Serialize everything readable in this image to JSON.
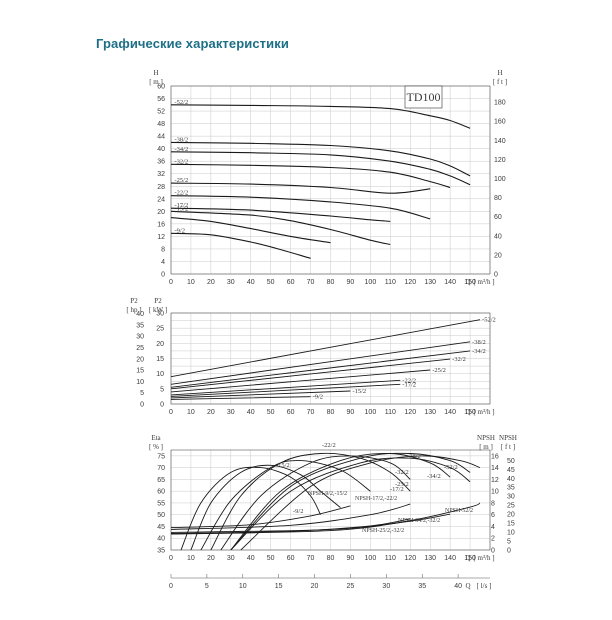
{
  "page": {
    "title": "Графические характеристики"
  },
  "chart_data": [
    {
      "type": "line",
      "panel": "head",
      "badge": "TD100",
      "ylabel_left": "H",
      "yunit_left": "[ m ]",
      "ylabel_right": "H",
      "yunit_right": "[ f t ]",
      "xlabel": "Q",
      "xunit": "[ m³/h ]",
      "xlim": [
        0,
        160
      ],
      "ylim": [
        0,
        60
      ],
      "xticks": [
        0,
        10,
        20,
        30,
        40,
        50,
        60,
        70,
        80,
        90,
        100,
        110,
        120,
        130,
        140,
        150
      ],
      "yticks": [
        0,
        4,
        8,
        12,
        16,
        20,
        24,
        28,
        32,
        36,
        40,
        44,
        48,
        52,
        56,
        60
      ],
      "yticks_right": [
        0,
        20,
        40,
        60,
        80,
        100,
        120,
        140,
        160,
        180
      ],
      "ft_per_m": 3.2808,
      "grid": true,
      "series": [
        {
          "name": "-52/2",
          "x": [
            0,
            40,
            80,
            110,
            130,
            140,
            150
          ],
          "y": [
            54,
            53.8,
            53.5,
            52.8,
            50.5,
            49,
            46.5
          ]
        },
        {
          "name": "-38/2",
          "x": [
            0,
            40,
            80,
            110,
            130,
            140,
            150
          ],
          "y": [
            42,
            41.7,
            41,
            39.3,
            36.7,
            34.5,
            31.3
          ]
        },
        {
          "name": "-34/2",
          "x": [
            0,
            40,
            80,
            110,
            130,
            140,
            150
          ],
          "y": [
            39,
            38.7,
            38,
            36,
            33.4,
            31.3,
            28.5
          ]
        },
        {
          "name": "-32/2",
          "x": [
            0,
            40,
            80,
            110,
            130,
            140
          ],
          "y": [
            35,
            34.7,
            34,
            32.5,
            29.5,
            27.6
          ]
        },
        {
          "name": "-25/2",
          "x": [
            0,
            40,
            80,
            110,
            130
          ],
          "y": [
            29,
            28.7,
            27.6,
            25.8,
            27.2
          ]
        },
        {
          "name": "-22/2",
          "x": [
            0,
            40,
            80,
            110,
            130
          ],
          "y": [
            25,
            24.5,
            23,
            21,
            17.6
          ]
        },
        {
          "name": "-17/2",
          "x": [
            0,
            40,
            80,
            100,
            110
          ],
          "y": [
            21,
            20.4,
            18.5,
            17.3,
            16.8
          ]
        },
        {
          "name": "-15/2",
          "x": [
            0,
            40,
            60,
            80,
            100,
            110
          ],
          "y": [
            20,
            18.8,
            17,
            14.2,
            10.8,
            9.4
          ]
        },
        {
          "name": "-9/2",
          "x": [
            0,
            20,
            40,
            55,
            70
          ],
          "y": [
            13,
            12.5,
            10.2,
            7.8,
            5
          ]
        },
        {
          "name": "",
          "x": [
            0,
            20,
            40,
            60,
            80
          ],
          "y": [
            18,
            16.8,
            14.5,
            12,
            10
          ]
        }
      ]
    },
    {
      "type": "line",
      "panel": "power",
      "ylabel_left": "P2",
      "yunit_left": "[ hp ]",
      "ylabel_right": "P2",
      "yunit_right": "[ kW ]",
      "xlabel": "Q",
      "xunit": "[ m³/h ]",
      "xlim": [
        0,
        160
      ],
      "ylim": [
        0,
        30
      ],
      "xticks": [
        0,
        10,
        20,
        30,
        40,
        50,
        60,
        70,
        80,
        90,
        100,
        110,
        120,
        130,
        140,
        150
      ],
      "yticks_kw": [
        0,
        5,
        10,
        15,
        20,
        25,
        30
      ],
      "yticks_hp": [
        0,
        5,
        10,
        15,
        20,
        25,
        30,
        35,
        40
      ],
      "grid": true,
      "series": [
        {
          "name": "-52/2",
          "x": [
            0,
            155
          ],
          "y": [
            9,
            27.8
          ]
        },
        {
          "name": "-38/2",
          "x": [
            0,
            150
          ],
          "y": [
            6.5,
            20.5
          ]
        },
        {
          "name": "-34/2",
          "x": [
            0,
            150
          ],
          "y": [
            5.5,
            17.5
          ]
        },
        {
          "name": "-32/2",
          "x": [
            0,
            140
          ],
          "y": [
            5,
            14.8
          ]
        },
        {
          "name": "-25/2",
          "x": [
            0,
            130
          ],
          "y": [
            4,
            11.2
          ]
        },
        {
          "name": "-22/2",
          "x": [
            0,
            115
          ],
          "y": [
            3,
            7.8
          ]
        },
        {
          "name": "-17/2",
          "x": [
            0,
            115
          ],
          "y": [
            2.5,
            6.5
          ]
        },
        {
          "name": "-15/2",
          "x": [
            0,
            90
          ],
          "y": [
            2,
            4.3
          ]
        },
        {
          "name": "-9/2",
          "x": [
            0,
            70
          ],
          "y": [
            1.5,
            2.4
          ]
        }
      ]
    },
    {
      "type": "line",
      "panel": "efficiency_npsh",
      "ylabel_left": "Eta",
      "yunit_left": "[ % ]",
      "ylabel_right1": "NPSH",
      "yunit_right1": "[ m ]",
      "ylabel_right2": "NPSH",
      "yunit_right2": "[ f t ]",
      "xlabel": "Q",
      "xunit": "[ m³/h ]",
      "xlabel2": "Q",
      "xunit2": "[ l/s ]",
      "xlim": [
        0,
        160
      ],
      "ylim": [
        35,
        77.5
      ],
      "xticks": [
        0,
        10,
        20,
        30,
        40,
        50,
        60,
        70,
        80,
        90,
        100,
        110,
        120,
        130,
        140,
        150
      ],
      "yticks": [
        35,
        40,
        45,
        50,
        55,
        60,
        65,
        70,
        75
      ],
      "yticks_npsh_m": [
        0,
        2,
        4,
        6,
        8,
        10,
        12,
        14,
        16
      ],
      "yticks_npsh_ft": [
        0,
        5,
        10,
        15,
        20,
        25,
        30,
        35,
        40,
        45,
        50
      ],
      "xticks_ls": [
        0,
        5,
        10,
        15,
        20,
        25,
        30,
        35,
        40
      ],
      "grid": true,
      "eta_series": [
        {
          "name": "-9/2",
          "x": [
            5,
            15,
            30,
            45,
            60,
            70,
            75
          ],
          "y": [
            35,
            55,
            68,
            70,
            66,
            58,
            50
          ]
        },
        {
          "name": "-15/2",
          "x": [
            10,
            20,
            35,
            50,
            65,
            75,
            85
          ],
          "y": [
            35,
            55,
            68,
            71,
            67,
            60,
            53
          ]
        },
        {
          "name": "-22/2",
          "x": [
            20,
            35,
            55,
            75,
            95,
            110,
            120
          ],
          "y": [
            35,
            58,
            72,
            76,
            74,
            68,
            60
          ]
        },
        {
          "name": "-17/2",
          "x": [
            15,
            30,
            50,
            65,
            85,
            100
          ],
          "y": [
            35,
            56,
            70,
            73,
            69,
            60
          ]
        },
        {
          "name": "-25/2",
          "x": [
            25,
            45,
            70,
            90,
            110,
            120
          ],
          "y": [
            35,
            58,
            72,
            75,
            72,
            65
          ]
        },
        {
          "name": "-32/2",
          "x": [
            30,
            55,
            85,
            110,
            130,
            140
          ],
          "y": [
            35,
            60,
            73,
            76,
            72,
            66
          ]
        },
        {
          "name": "-38/2",
          "x": [
            30,
            60,
            95,
            120,
            140,
            150
          ],
          "y": [
            35,
            62,
            74,
            76,
            73,
            68
          ]
        },
        {
          "name": "-34/2",
          "x": [
            30,
            60,
            95,
            120,
            140,
            150
          ],
          "y": [
            35,
            60,
            72,
            74,
            70,
            64
          ]
        },
        {
          "name": "-52/2",
          "x": [
            35,
            70,
            100,
            125,
            145,
            155
          ],
          "y": [
            35,
            62,
            72,
            75,
            73,
            70
          ]
        }
      ],
      "npsh_labels": [
        "NPSH-9/2,-15/2",
        "NPSH-17/2,-22/2",
        "NPSH-52/2",
        "NPSH-34/2,-32/2",
        "NPSH-25/2,-32/2"
      ],
      "npsh_series": [
        {
          "name": "NPSH-9/2,-15/2",
          "x": [
            0,
            40,
            70,
            90
          ],
          "y": [
            3.8,
            4.3,
            5.8,
            7.5
          ]
        },
        {
          "name": "NPSH-17/2,-22/2",
          "x": [
            0,
            60,
            100,
            120
          ],
          "y": [
            3.5,
            4.2,
            6,
            7.8
          ]
        },
        {
          "name": "NPSH-52/2",
          "x": [
            0,
            80,
            120,
            150,
            155
          ],
          "y": [
            2.7,
            3.3,
            5,
            7.3,
            8
          ]
        },
        {
          "name": "NPSH-34/2,-32/2",
          "x": [
            0,
            80,
            120,
            140
          ],
          "y": [
            3,
            3.5,
            4.9,
            6.1
          ]
        },
        {
          "name": "NPSH-25/2,-32/2",
          "x": [
            0,
            60,
            100,
            120
          ],
          "y": [
            2.8,
            3.2,
            4.1,
            5.3
          ]
        }
      ]
    }
  ]
}
